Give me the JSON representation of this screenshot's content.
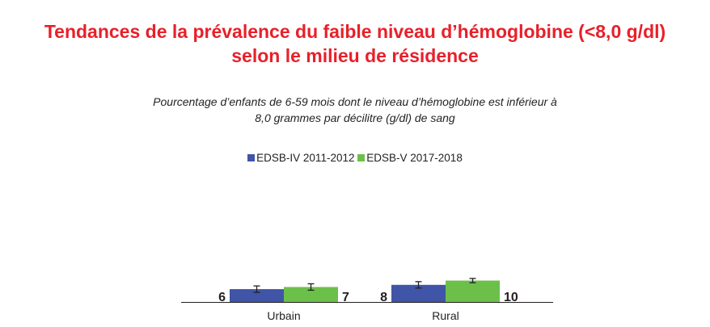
{
  "chart_data": {
    "type": "bar",
    "title_lines": [
      "Tendances de la prévalence du faible niveau d’hémoglobine (<8,0 g/dl)",
      "selon le milieu de résidence"
    ],
    "subtitle_lines": [
      "Pourcentage d’enfants de 6-59 mois dont le niveau d’hémoglobine est inférieur à",
      "8,0 grammes par décilitre (g/dl) de sang"
    ],
    "xlabel": "",
    "ylabel": "",
    "categories": [
      "Urbain",
      "Rural"
    ],
    "series": [
      {
        "name": "EDSB-IV 2011-2012",
        "color": "#4055a7",
        "values": [
          6,
          8
        ],
        "error_bars": [
          1.5,
          1.5
        ]
      },
      {
        "name": "EDSB-V 2017-2018",
        "color": "#6cc04a",
        "values": [
          7,
          10
        ],
        "error_bars": [
          1.5,
          1.0
        ]
      }
    ],
    "value_labels": [
      "6",
      "7",
      "8",
      "10"
    ],
    "ylim": [
      0,
      100
    ],
    "grid": false,
    "legend_position": "top-center",
    "error_bars": true
  }
}
